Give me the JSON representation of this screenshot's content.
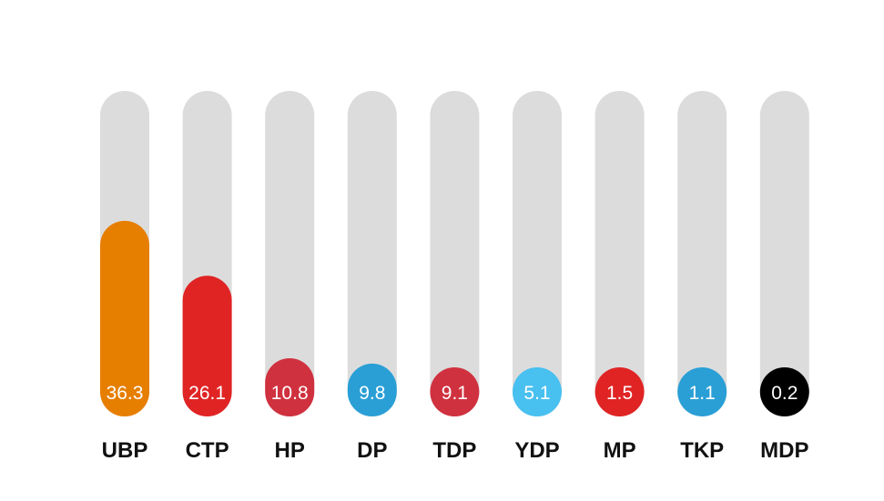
{
  "chart_data": {
    "type": "bar",
    "title": "",
    "xlabel": "",
    "ylabel": "",
    "ylim": [
      0,
      100
    ],
    "grid": false,
    "categories": [
      "UBP",
      "CTP",
      "HP",
      "DP",
      "TDP",
      "YDP",
      "MP",
      "TKP",
      "MDP"
    ],
    "values": [
      36.3,
      26.1,
      10.8,
      9.8,
      9.1,
      5.1,
      1.5,
      1.1,
      0.2
    ],
    "value_labels": [
      "36.3",
      "26.1",
      "10.8",
      "9.8",
      "9.1",
      "5.1",
      "1.5",
      "1.1",
      "0.2"
    ],
    "colors": [
      "#e67e00",
      "#e02424",
      "#d0313f",
      "#2a9fd6",
      "#d0313f",
      "#48c0f0",
      "#e02424",
      "#2a9fd6",
      "#000000"
    ],
    "track_color": "#dcdcdc"
  }
}
